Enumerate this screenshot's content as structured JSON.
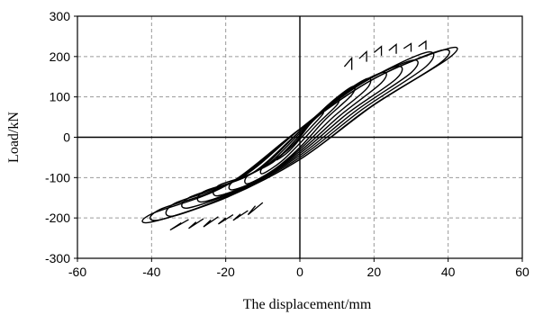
{
  "chart_data": {
    "type": "line",
    "title": "",
    "xlabel": "The displacement/mm",
    "ylabel": "Load/kN",
    "xlim": [
      -60,
      60
    ],
    "ylim": [
      -300,
      300
    ],
    "x_ticks": [
      -60,
      -40,
      -20,
      0,
      20,
      40,
      60
    ],
    "y_ticks": [
      -300,
      -200,
      -100,
      0,
      100,
      200,
      300
    ],
    "x_tick_labels": [
      "-60",
      "-40",
      "-20",
      "0",
      "20",
      "40",
      "60"
    ],
    "y_tick_labels": [
      "-300",
      "-200",
      "-100",
      "0",
      "100",
      "200",
      "300"
    ],
    "grid": true,
    "legend": "none",
    "line_color": "#000000",
    "series": [
      {
        "values_note_free": true,
        "loops": [
          [
            [
              -6,
              -50
            ],
            [
              -3,
              -30
            ],
            [
              0,
              0
            ],
            [
              3,
              35
            ],
            [
              6,
              60
            ],
            [
              6,
              55
            ],
            [
              3,
              25
            ],
            [
              0,
              -5
            ],
            [
              -3,
              -35
            ],
            [
              -6,
              -55
            ]
          ],
          [
            [
              -10,
              -75
            ],
            [
              -5,
              -45
            ],
            [
              0,
              5
            ],
            [
              5,
              55
            ],
            [
              10,
              95
            ],
            [
              10,
              80
            ],
            [
              5,
              35
            ],
            [
              0,
              -15
            ],
            [
              -5,
              -60
            ],
            [
              -10,
              -90
            ]
          ],
          [
            [
              -14,
              -95
            ],
            [
              -7,
              -60
            ],
            [
              0,
              5
            ],
            [
              7,
              75
            ],
            [
              14,
              125
            ],
            [
              14,
              105
            ],
            [
              7,
              45
            ],
            [
              0,
              -25
            ],
            [
              -7,
              -80
            ],
            [
              -14,
              -115
            ]
          ],
          [
            [
              -18,
              -110
            ],
            [
              -9,
              -70
            ],
            [
              0,
              10
            ],
            [
              9,
              90
            ],
            [
              18,
              145
            ],
            [
              18,
              120
            ],
            [
              9,
              50
            ],
            [
              0,
              -30
            ],
            [
              -9,
              -95
            ],
            [
              -18,
              -130
            ]
          ],
          [
            [
              -22,
              -120
            ],
            [
              -11,
              -80
            ],
            [
              0,
              15
            ],
            [
              11,
              105
            ],
            [
              22,
              160
            ],
            [
              22,
              135
            ],
            [
              11,
              55
            ],
            [
              0,
              -35
            ],
            [
              -11,
              -105
            ],
            [
              -22,
              -145
            ]
          ],
          [
            [
              -26,
              -135
            ],
            [
              -13,
              -90
            ],
            [
              0,
              15
            ],
            [
              13,
              115
            ],
            [
              26,
              175
            ],
            [
              26,
              145
            ],
            [
              13,
              60
            ],
            [
              0,
              -40
            ],
            [
              -13,
              -115
            ],
            [
              -26,
              -160
            ]
          ],
          [
            [
              -30,
              -150
            ],
            [
              -15,
              -95
            ],
            [
              0,
              20
            ],
            [
              15,
              125
            ],
            [
              30,
              190
            ],
            [
              30,
              160
            ],
            [
              15,
              65
            ],
            [
              0,
              -45
            ],
            [
              -15,
              -125
            ],
            [
              -30,
              -175
            ]
          ],
          [
            [
              -34,
              -165
            ],
            [
              -17,
              -105
            ],
            [
              0,
              20
            ],
            [
              17,
              135
            ],
            [
              34,
              210
            ],
            [
              34,
              175
            ],
            [
              17,
              70
            ],
            [
              0,
              -50
            ],
            [
              -17,
              -135
            ],
            [
              -34,
              -195
            ]
          ],
          [
            [
              -38,
              -180
            ],
            [
              -19,
              -115
            ],
            [
              0,
              20
            ],
            [
              19,
              140
            ],
            [
              38,
              215
            ],
            [
              38,
              185
            ],
            [
              19,
              75
            ],
            [
              0,
              -55
            ],
            [
              -19,
              -145
            ],
            [
              -38,
              -205
            ]
          ],
          [
            [
              -40,
              -190
            ],
            [
              -20,
              -120
            ],
            [
              0,
              20
            ],
            [
              20,
              145
            ],
            [
              40,
              220
            ],
            [
              40,
              195
            ],
            [
              20,
              80
            ],
            [
              0,
              -55
            ],
            [
              -20,
              -150
            ],
            [
              -40,
              -210
            ]
          ]
        ],
        "spikes": [
          [
            [
              20,
              210
            ],
            [
              22,
              225
            ]
          ],
          [
            [
              24,
              215
            ],
            [
              26,
              230
            ]
          ],
          [
            [
              28,
              220
            ],
            [
              30,
              232
            ]
          ],
          [
            [
              32,
              225
            ],
            [
              34,
              238
            ]
          ],
          [
            [
              16,
              195
            ],
            [
              18,
              212
            ]
          ],
          [
            [
              12,
              175
            ],
            [
              14,
              196
            ]
          ],
          [
            [
              -20,
              -200
            ],
            [
              -22,
              -215
            ]
          ],
          [
            [
              -24,
              -205
            ],
            [
              -26,
              -222
            ]
          ],
          [
            [
              -28,
              -210
            ],
            [
              -30,
              -226
            ]
          ],
          [
            [
              -32,
              -212
            ],
            [
              -35,
              -230
            ]
          ],
          [
            [
              -16,
              -190
            ],
            [
              -18,
              -206
            ]
          ],
          [
            [
              -12,
              -170
            ],
            [
              -14,
              -192
            ]
          ]
        ]
      }
    ]
  }
}
